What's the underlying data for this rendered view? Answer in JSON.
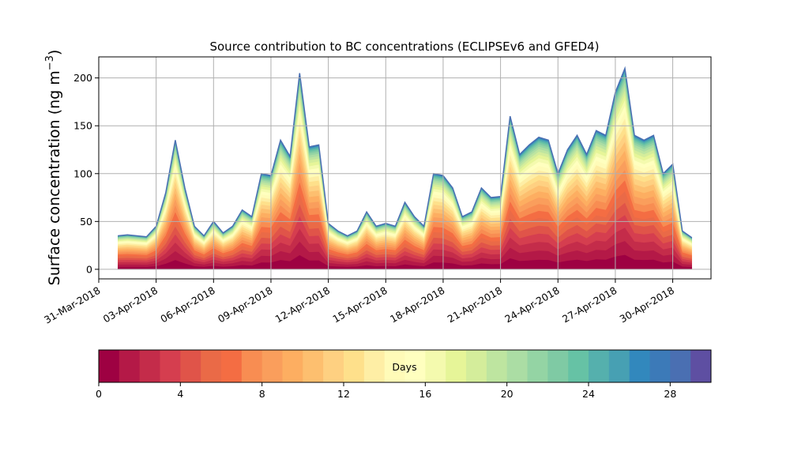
{
  "chart_data": {
    "type": "area",
    "title": "Source contribution to BC concentrations (ECLIPSEv6 and GFED4)",
    "ylabel": "Surface concentration (ng m",
    "ylabel_unit_exp": "−3",
    "ylabel_close": ")",
    "xlim": [
      "2018-03-31",
      "2018-05-02"
    ],
    "ylim": [
      -10,
      222
    ],
    "x_ticks": [
      "31-Mar-2018",
      "03-Apr-2018",
      "06-Apr-2018",
      "09-Apr-2018",
      "12-Apr-2018",
      "15-Apr-2018",
      "18-Apr-2018",
      "21-Apr-2018",
      "24-Apr-2018",
      "27-Apr-2018",
      "30-Apr-2018"
    ],
    "x_tick_dates": [
      "2018-03-31",
      "2018-04-03",
      "2018-04-06",
      "2018-04-09",
      "2018-04-12",
      "2018-04-15",
      "2018-04-18",
      "2018-04-21",
      "2018-04-24",
      "2018-04-27",
      "2018-04-30"
    ],
    "y_ticks": [
      0,
      50,
      100,
      150,
      200
    ],
    "grid": true,
    "series_description": "Stacked contributions by emission age (0–30 days); total surface BC concentration shown",
    "x": [
      "2018-04-01 00:00",
      "2018-04-01 12:00",
      "2018-04-02 00:00",
      "2018-04-02 12:00",
      "2018-04-03 00:00",
      "2018-04-03 12:00",
      "2018-04-04 00:00",
      "2018-04-04 12:00",
      "2018-04-05 00:00",
      "2018-04-05 12:00",
      "2018-04-06 00:00",
      "2018-04-06 12:00",
      "2018-04-07 00:00",
      "2018-04-07 12:00",
      "2018-04-08 00:00",
      "2018-04-08 12:00",
      "2018-04-09 00:00",
      "2018-04-09 12:00",
      "2018-04-10 00:00",
      "2018-04-10 12:00",
      "2018-04-11 00:00",
      "2018-04-11 12:00",
      "2018-04-12 00:00",
      "2018-04-12 12:00",
      "2018-04-13 00:00",
      "2018-04-13 12:00",
      "2018-04-14 00:00",
      "2018-04-14 12:00",
      "2018-04-15 00:00",
      "2018-04-15 12:00",
      "2018-04-16 00:00",
      "2018-04-16 12:00",
      "2018-04-17 00:00",
      "2018-04-17 12:00",
      "2018-04-18 00:00",
      "2018-04-18 12:00",
      "2018-04-19 00:00",
      "2018-04-19 12:00",
      "2018-04-20 00:00",
      "2018-04-20 12:00",
      "2018-04-21 00:00",
      "2018-04-21 12:00",
      "2018-04-22 00:00",
      "2018-04-22 12:00",
      "2018-04-23 00:00",
      "2018-04-23 12:00",
      "2018-04-24 00:00",
      "2018-04-24 12:00",
      "2018-04-25 00:00",
      "2018-04-25 12:00",
      "2018-04-26 00:00",
      "2018-04-26 12:00",
      "2018-04-27 00:00",
      "2018-04-27 12:00",
      "2018-04-28 00:00",
      "2018-04-28 12:00",
      "2018-04-29 00:00",
      "2018-04-29 12:00",
      "2018-04-30 00:00",
      "2018-04-30 12:00",
      "2018-05-01 00:00"
    ],
    "total": [
      35,
      36,
      35,
      34,
      45,
      80,
      135,
      85,
      45,
      35,
      50,
      38,
      45,
      62,
      55,
      100,
      98,
      135,
      118,
      205,
      128,
      130,
      48,
      40,
      35,
      40,
      60,
      45,
      48,
      45,
      70,
      55,
      45,
      100,
      98,
      85,
      55,
      60,
      85,
      75,
      76,
      160,
      120,
      130,
      138,
      135,
      100,
      125,
      140,
      120,
      145,
      140,
      185,
      210,
      140,
      135,
      140,
      100,
      110,
      40,
      33
    ]
  },
  "colorbar": {
    "label": "Days",
    "ticks": [
      0,
      4,
      8,
      12,
      16,
      20,
      24,
      28
    ],
    "vmin": 0,
    "vmax": 30,
    "colors": [
      "#9e0142",
      "#b41947",
      "#c42c4a",
      "#d53e4f",
      "#e05449",
      "#ea6a47",
      "#f46d43",
      "#f88d52",
      "#fa9e5c",
      "#fdae61",
      "#fdbf6f",
      "#fed081",
      "#fee08b",
      "#feeea5",
      "#fffbb8",
      "#ffffbf",
      "#f4faae",
      "#e6f598",
      "#d4ed9b",
      "#bee5a0",
      "#abdda4",
      "#94d4a4",
      "#7fcaa4",
      "#66c2a5",
      "#55b0ad",
      "#47a0b3",
      "#3288bd",
      "#3c7ab8",
      "#4a6fb2",
      "#5e4fa2"
    ]
  }
}
